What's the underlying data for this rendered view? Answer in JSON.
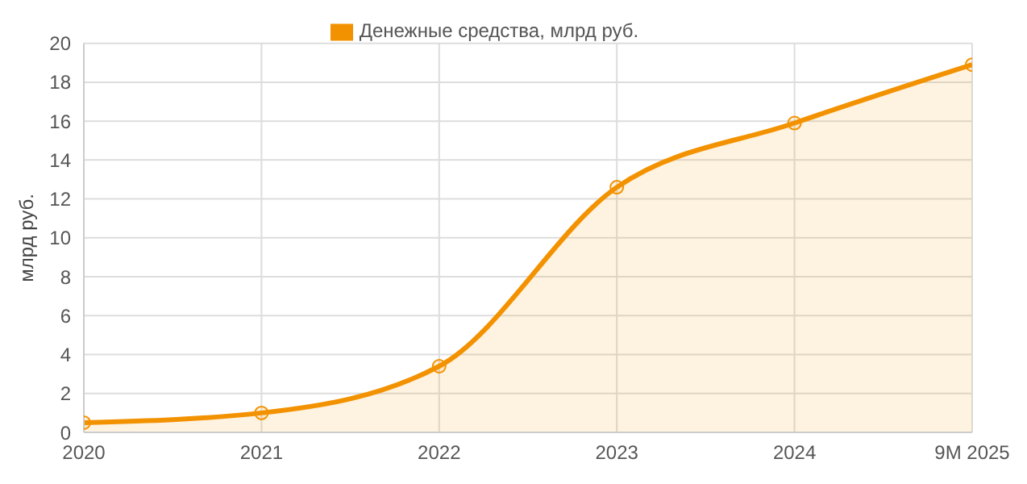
{
  "chart_data": {
    "type": "area",
    "ylabel": "млрд руб.",
    "categories": [
      "2020",
      "2021",
      "2022",
      "2023",
      "2024",
      "9M 2025"
    ],
    "series": [
      {
        "name": "Денежные средства, млрд руб.",
        "color": "#f39200",
        "values": [
          0.5,
          1.0,
          3.4,
          12.6,
          15.9,
          18.9
        ]
      }
    ],
    "ylim": [
      0,
      20
    ],
    "yticks": [
      0,
      2,
      4,
      6,
      8,
      10,
      12,
      14,
      16,
      18,
      20
    ],
    "grid": true,
    "legend": "top",
    "marker": "circle"
  }
}
